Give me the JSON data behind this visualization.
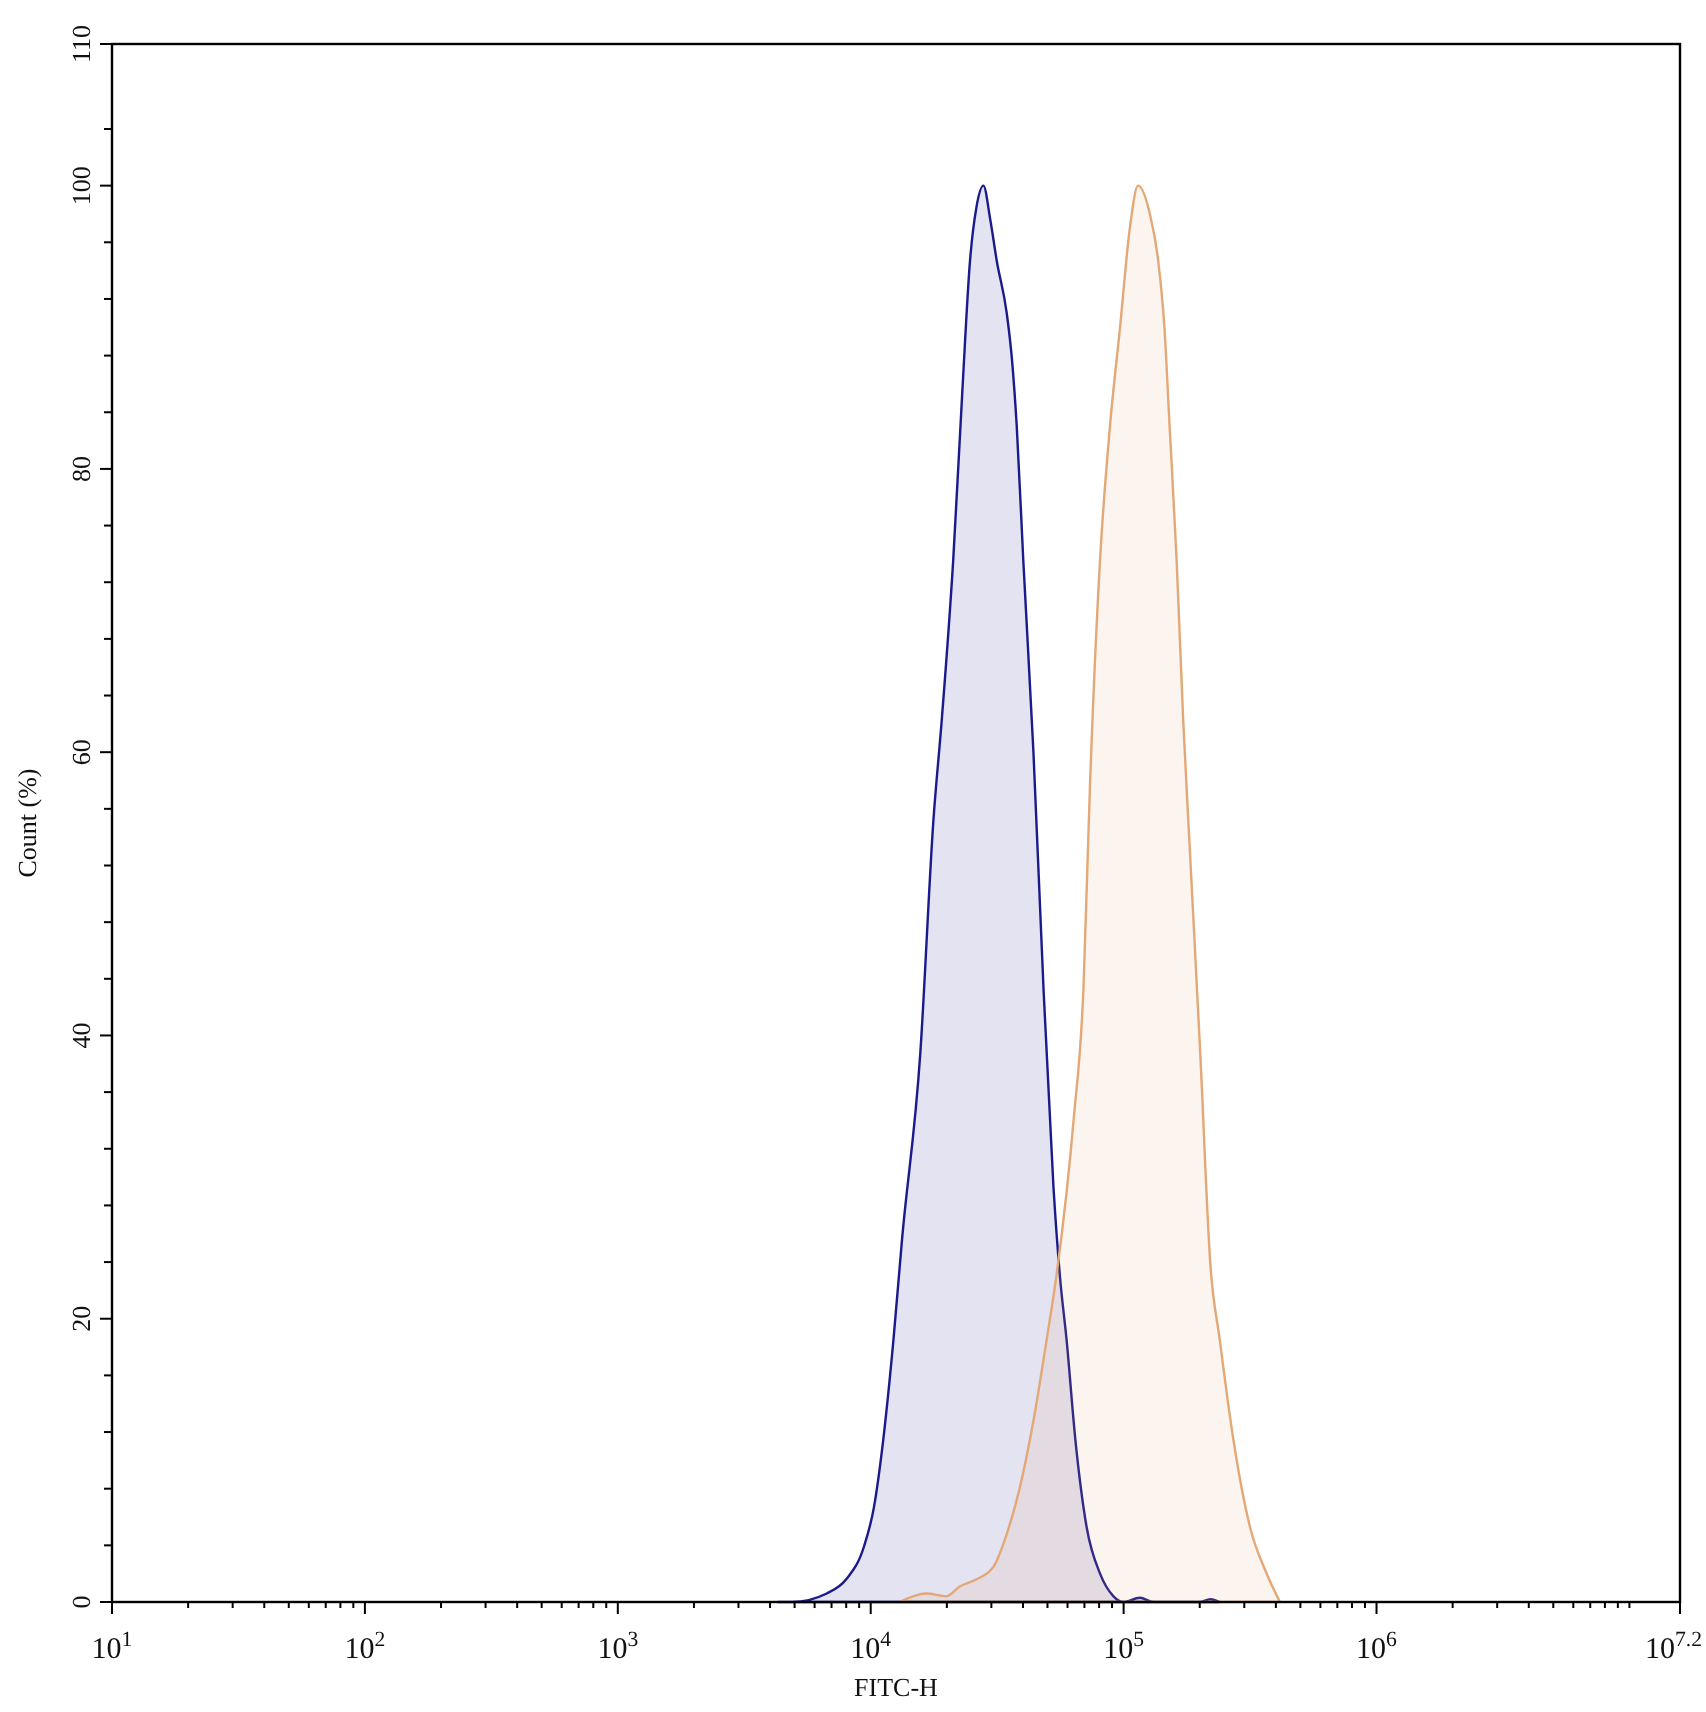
{
  "chart_data": {
    "type": "area",
    "xlabel": "FITC-H",
    "ylabel": "Count (%)",
    "log": "x",
    "xlim": [
      10,
      15848932
    ],
    "xticks": [
      {
        "value": 10,
        "label": "10$^{1}$"
      },
      {
        "value": 20,
        "label": null
      },
      {
        "value": 30,
        "label": null
      },
      {
        "value": 40,
        "label": null
      },
      {
        "value": 50,
        "label": null
      },
      {
        "value": 60,
        "label": null
      },
      {
        "value": 70,
        "label": null
      },
      {
        "value": 80,
        "label": null
      },
      {
        "value": 90,
        "label": null
      },
      {
        "value": 100,
        "label": "10$^{2}$"
      },
      {
        "value": 200,
        "label": null
      },
      {
        "value": 300,
        "label": null
      },
      {
        "value": 400,
        "label": null
      },
      {
        "value": 500,
        "label": null
      },
      {
        "value": 600,
        "label": null
      },
      {
        "value": 700,
        "label": null
      },
      {
        "value": 800,
        "label": null
      },
      {
        "value": 900,
        "label": null
      },
      {
        "value": 1000,
        "label": "10$^{3}$"
      },
      {
        "value": 2000,
        "label": null
      },
      {
        "value": 3000,
        "label": null
      },
      {
        "value": 4000,
        "label": null
      },
      {
        "value": 5000,
        "label": null
      },
      {
        "value": 6000,
        "label": null
      },
      {
        "value": 7000,
        "label": null
      },
      {
        "value": 8000,
        "label": null
      },
      {
        "value": 9000,
        "label": null
      },
      {
        "value": 10000,
        "label": "10$^{4}$"
      },
      {
        "value": 20000,
        "label": null
      },
      {
        "value": 30000,
        "label": null
      },
      {
        "value": 40000,
        "label": null
      },
      {
        "value": 50000,
        "label": null
      },
      {
        "value": 60000,
        "label": null
      },
      {
        "value": 70000,
        "label": null
      },
      {
        "value": 80000,
        "label": null
      },
      {
        "value": 90000,
        "label": null
      },
      {
        "value": 100000,
        "label": "10$^{5}$"
      },
      {
        "value": 200000,
        "label": null
      },
      {
        "value": 300000,
        "label": null
      },
      {
        "value": 400000,
        "label": null
      },
      {
        "value": 500000,
        "label": null
      },
      {
        "value": 600000,
        "label": null
      },
      {
        "value": 700000,
        "label": null
      },
      {
        "value": 800000,
        "label": null
      },
      {
        "value": 900000,
        "label": null
      },
      {
        "value": 1000000,
        "label": "10$^{6}$"
      },
      {
        "value": 2000000,
        "label": null
      },
      {
        "value": 3000000,
        "label": null
      },
      {
        "value": 4000000,
        "label": null
      },
      {
        "value": 5000000,
        "label": null
      },
      {
        "value": 6000000,
        "label": null
      },
      {
        "value": 7000000,
        "label": null
      },
      {
        "value": 8000000,
        "label": null
      },
      {
        "value": 9000000,
        "label": null
      },
      {
        "value": 10000000,
        "label": null
      },
      {
        "value": 15848932,
        "label": "10$^{7.2}$"
      }
    ],
    "ylim": [
      0,
      110
    ],
    "yticks": [
      0,
      {
        "value": 4,
        "label": null
      },
      {
        "value": 8,
        "label": null
      },
      {
        "value": 12,
        "label": null
      },
      {
        "value": 16,
        "label": null
      },
      20,
      {
        "value": 24,
        "label": null
      },
      {
        "value": 28,
        "label": null
      },
      {
        "value": 32,
        "label": null
      },
      {
        "value": 36,
        "label": null
      },
      40,
      {
        "value": 44,
        "label": null
      },
      {
        "value": 48,
        "label": null
      },
      {
        "value": 52,
        "label": null
      },
      {
        "value": 56,
        "label": null
      },
      60,
      {
        "value": 64,
        "label": null
      },
      {
        "value": 68,
        "label": null
      },
      {
        "value": 72,
        "label": null
      },
      {
        "value": 76,
        "label": null
      },
      80,
      {
        "value": 84,
        "label": null
      },
      {
        "value": 88,
        "label": null
      },
      {
        "value": 92,
        "label": null
      },
      {
        "value": 96,
        "label": null
      },
      100,
      {
        "value": 104,
        "label": null
      },
      110
    ],
    "series": [
      {
        "color": "#1a1a8a",
        "x": [
          4300,
          4900,
          6700,
          8000,
          9400,
          10300,
          11200,
          12300,
          13300,
          15700,
          17700,
          19100,
          21200,
          23000,
          24700,
          26200,
          27900,
          29700,
          31500,
          34500,
          36200,
          37800,
          40100,
          44000,
          48200,
          52800,
          56000,
          59500,
          64500,
          71400,
          80700,
          91200,
          99800,
          116000,
          131000,
          200000,
          220000,
          240000
        ],
        "values": [
          0,
          0,
          0.6,
          1.6,
          3.9,
          6.7,
          11.4,
          18.5,
          25.6,
          38.7,
          55.2,
          62.3,
          73.6,
          85.3,
          94.7,
          98.5,
          100,
          97.6,
          94.7,
          91,
          87.7,
          83,
          73.6,
          60,
          43.4,
          29.3,
          23,
          18.5,
          11.4,
          5.3,
          2.0,
          0.4,
          0,
          0.3,
          0,
          0,
          0.2,
          0
        ]
      },
      {
        "color": "#e3a877",
        "x": [
          13000,
          16600,
          19900,
          22500,
          26200,
          30600,
          34500,
          38900,
          44000,
          49600,
          54400,
          63400,
          69400,
          73600,
          80700,
          88300,
          96800,
          106000,
          114000,
          127000,
          137000,
          145000,
          152000,
          162000,
          172000,
          183000,
          201000,
          220000,
          240000,
          272000,
          316000,
          368000,
          415000
        ],
        "values": [
          0,
          0.6,
          0.4,
          1.1,
          1.6,
          2.5,
          4.8,
          8.1,
          12.8,
          18.5,
          23.2,
          34,
          43.4,
          57.6,
          73.6,
          83,
          90,
          97.1,
          100,
          98,
          94.7,
          90,
          83,
          73.6,
          62.3,
          52.9,
          38.7,
          24,
          18.5,
          11.4,
          5.3,
          2.0,
          0
        ]
      }
    ]
  }
}
